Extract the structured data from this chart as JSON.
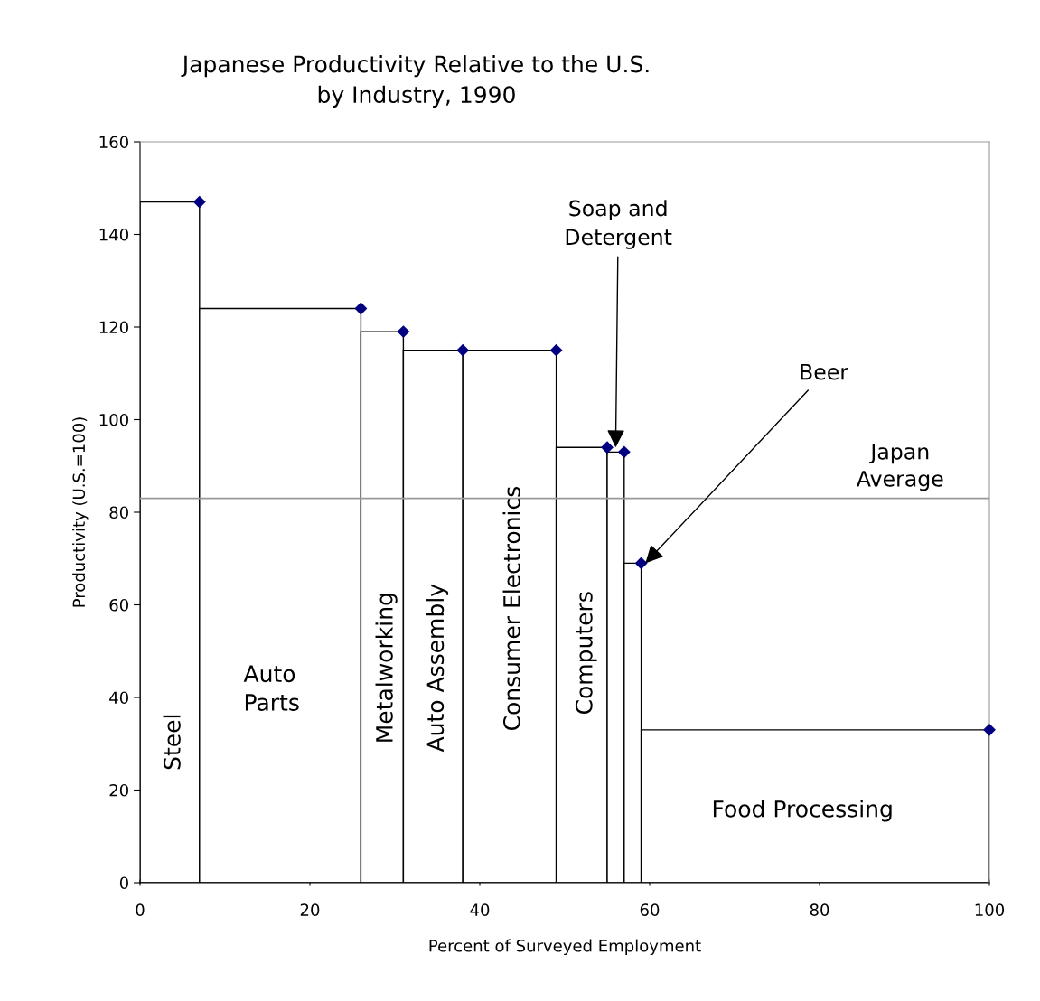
{
  "chart_data": {
    "type": "bar",
    "title": "Japanese Productivity Relative to the U.S.\nby Industry, 1990",
    "xlabel": "Percent of Surveyed Employment",
    "ylabel": "Productivity (U.S.=100)",
    "series": [
      {
        "color": "#ffffff",
        "x": [
          3.5,
          16.5,
          28.5,
          34.5,
          43.5,
          52,
          56,
          58,
          79.5
        ],
        "values": [
          147,
          124,
          119,
          115,
          115,
          94,
          93,
          69,
          33
        ]
      },
      {
        "type": "scatter",
        "color": "#000080",
        "x": [
          7,
          26,
          31,
          38,
          49,
          55,
          57,
          59,
          100
        ],
        "values": [
          147,
          124,
          119,
          115,
          115,
          94,
          93,
          69,
          33
        ]
      }
    ],
    "marker": "diamond",
    "xlim": [
      0,
      100
    ],
    "xticks": [
      0,
      20,
      40,
      60,
      80,
      100
    ],
    "ylim": [
      0,
      160
    ],
    "yticks": [
      0,
      20,
      40,
      60,
      80,
      100,
      120,
      140,
      160
    ],
    "grid": false,
    "ref_lines": [
      {
        "axis": "y",
        "value": 83,
        "label": "Japan\nAverage",
        "color": "#999999"
      }
    ],
    "annotations": [
      "Steel",
      "Auto\nParts",
      "Metalworking",
      "Auto Assembly",
      "Consumer Electronics",
      "Computers",
      "Food Processing",
      {
        "text": "Soap and\nDetergent",
        "x": 56,
        "y": 94
      },
      {
        "text": "Beer",
        "x": 59.5,
        "y": 69
      }
    ]
  }
}
